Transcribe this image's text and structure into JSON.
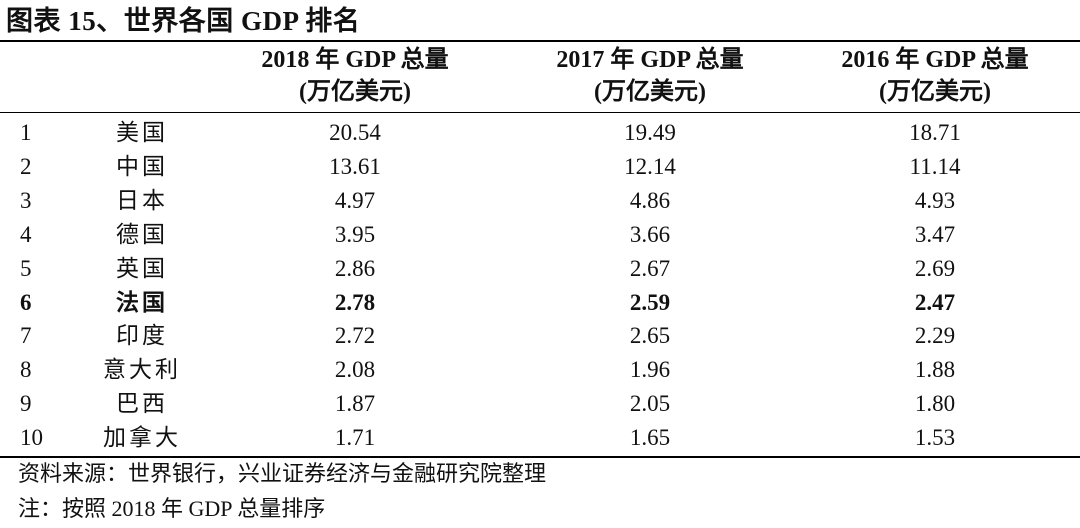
{
  "title": "图表 15、世界各国 GDP 排名",
  "columns": [
    {
      "line1": "2018 年 GDP 总量",
      "line2": "(万亿美元)"
    },
    {
      "line1": "2017 年 GDP 总量",
      "line2": "(万亿美元)"
    },
    {
      "line1": "2016 年 GDP 总量",
      "line2": "(万亿美元)"
    }
  ],
  "rows": [
    {
      "rank": "1",
      "country": "美国",
      "v2018": "20.54",
      "v2017": "19.49",
      "v2016": "18.71",
      "bold": false
    },
    {
      "rank": "2",
      "country": "中国",
      "v2018": "13.61",
      "v2017": "12.14",
      "v2016": "11.14",
      "bold": false
    },
    {
      "rank": "3",
      "country": "日本",
      "v2018": "4.97",
      "v2017": "4.86",
      "v2016": "4.93",
      "bold": false
    },
    {
      "rank": "4",
      "country": "德国",
      "v2018": "3.95",
      "v2017": "3.66",
      "v2016": "3.47",
      "bold": false
    },
    {
      "rank": "5",
      "country": "英国",
      "v2018": "2.86",
      "v2017": "2.67",
      "v2016": "2.69",
      "bold": false
    },
    {
      "rank": "6",
      "country": "法国",
      "v2018": "2.78",
      "v2017": "2.59",
      "v2016": "2.47",
      "bold": true
    },
    {
      "rank": "7",
      "country": "印度",
      "v2018": "2.72",
      "v2017": "2.65",
      "v2016": "2.29",
      "bold": false
    },
    {
      "rank": "8",
      "country": "意大利",
      "v2018": "2.08",
      "v2017": "1.96",
      "v2016": "1.88",
      "bold": false
    },
    {
      "rank": "9",
      "country": "巴西",
      "v2018": "1.87",
      "v2017": "2.05",
      "v2016": "1.80",
      "bold": false
    },
    {
      "rank": "10",
      "country": "加拿大",
      "v2018": "1.71",
      "v2017": "1.65",
      "v2016": "1.53",
      "bold": false
    }
  ],
  "source": "资料来源：世界银行，兴业证券经济与金融研究院整理",
  "note": "注：按照 2018 年 GDP 总量排序"
}
